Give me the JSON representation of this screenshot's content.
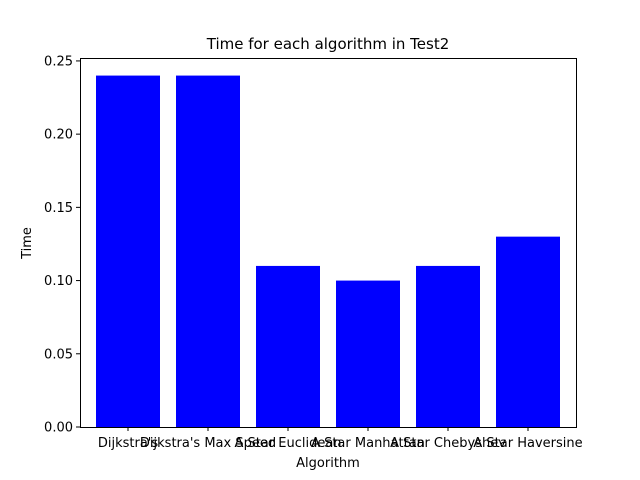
{
  "chart_data": {
    "type": "bar",
    "title": "Time for each algorithm in Test2",
    "xlabel": "Algorithm",
    "ylabel": "Time",
    "categories": [
      "Dijkstra's",
      "Dijkstra's Max Speed",
      "A Star Euclidean",
      "A Star Manhattan",
      "A Star Chebyshev",
      "A Star Haversine"
    ],
    "values": [
      0.24,
      0.24,
      0.11,
      0.1,
      0.11,
      0.13
    ],
    "ylim": [
      0,
      0.252
    ],
    "yticks": [
      0.0,
      0.05,
      0.1,
      0.15,
      0.2,
      0.25
    ],
    "ytick_labels": [
      "0.00",
      "0.05",
      "0.10",
      "0.15",
      "0.20",
      "0.25"
    ],
    "bar_color": "#0000ff",
    "grid": false,
    "legend": "none"
  }
}
